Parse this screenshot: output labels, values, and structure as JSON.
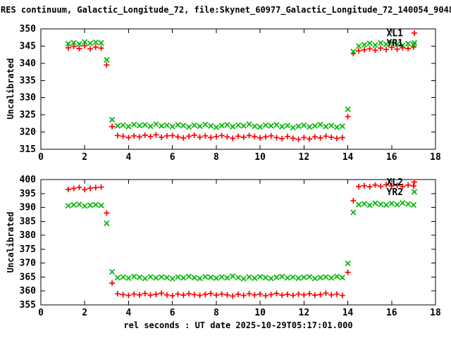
{
  "title": "RES continuum, Galactic_Longitude_72, file:Skynet_60977_Galactic_Longitude_72_140054_90483.f",
  "xlabel": "rel seconds : UT date 2025-10-29T05:17:01.000",
  "colors": {
    "red": "#ff0000",
    "green": "#00b400",
    "axis": "#000000",
    "background": "#ffffff"
  },
  "chart_data": {
    "type": "scatter",
    "x_start": 1.25,
    "x_step": 0.25,
    "xlim": [
      0,
      18
    ],
    "x_ticks": [
      0,
      2,
      4,
      6,
      8,
      10,
      12,
      14,
      16,
      18
    ],
    "grid": false,
    "legend_position": "top-right-inside",
    "panels": [
      {
        "name": "panel-1",
        "ylabel": "Uncalibrated",
        "ylim": [
          315,
          350
        ],
        "y_ticks": [
          315,
          320,
          325,
          330,
          335,
          340,
          345,
          350
        ],
        "legend": [
          {
            "label": "XL1",
            "marker": "plus",
            "color": "#ff0000"
          },
          {
            "label": "YR1",
            "marker": "cross",
            "color": "#00b400"
          }
        ],
        "series": [
          {
            "name": "XL1",
            "marker": "plus",
            "color": "#ff0000",
            "values": [
              344.5,
              344.9,
              344.3,
              345.1,
              344.2,
              344.7,
              344.4,
              339.5,
              321.6,
              319.0,
              318.8,
              318.4,
              318.9,
              318.6,
              319.1,
              318.7,
              319.2,
              318.5,
              318.9,
              319.0,
              318.6,
              318.3,
              318.8,
              319.1,
              318.5,
              318.9,
              318.4,
              318.7,
              319.0,
              318.6,
              318.2,
              318.8,
              318.5,
              319.0,
              318.7,
              318.3,
              318.6,
              318.9,
              318.4,
              318.1,
              318.7,
              318.2,
              317.9,
              318.4,
              318.0,
              318.6,
              318.3,
              318.8,
              318.5,
              318.2,
              318.4,
              324.5,
              342.8,
              343.6,
              343.9,
              344.2,
              343.8,
              344.4,
              344.0,
              344.6,
              344.1,
              344.5,
              344.3,
              344.7
            ]
          },
          {
            "name": "YR1",
            "marker": "cross",
            "color": "#00b400",
            "values": [
              345.7,
              346.0,
              345.6,
              346.2,
              345.8,
              346.1,
              345.9,
              341.0,
              323.6,
              321.8,
              322.0,
              321.6,
              322.2,
              321.9,
              322.1,
              321.7,
              322.3,
              321.8,
              322.0,
              321.6,
              322.1,
              321.9,
              321.5,
              322.0,
              321.7,
              322.2,
              321.8,
              321.4,
              321.9,
              322.1,
              321.6,
              322.0,
              321.8,
              322.3,
              321.7,
              321.5,
              322.0,
              321.8,
              322.1,
              321.6,
              321.9,
              321.3,
              321.7,
              322.0,
              321.5,
              321.8,
              322.2,
              321.6,
              321.9,
              321.4,
              321.7,
              326.6,
              343.4,
              345.0,
              345.4,
              345.8,
              345.3,
              345.9,
              345.5,
              346.0,
              345.6,
              345.2,
              345.7,
              345.4
            ]
          }
        ]
      },
      {
        "name": "panel-2",
        "ylabel": "Uncalibrated",
        "ylim": [
          355,
          400
        ],
        "y_ticks": [
          355,
          360,
          365,
          370,
          375,
          380,
          385,
          390,
          395,
          400
        ],
        "legend": [
          {
            "label": "XL2",
            "marker": "plus",
            "color": "#ff0000"
          },
          {
            "label": "YR2",
            "marker": "cross",
            "color": "#00b400"
          }
        ],
        "series": [
          {
            "name": "XL2",
            "marker": "plus",
            "color": "#ff0000",
            "values": [
              396.5,
              396.8,
              397.2,
              396.4,
              396.9,
              397.1,
              397.3,
              388.0,
              362.8,
              359.0,
              358.7,
              358.4,
              358.9,
              358.6,
              359.1,
              358.5,
              358.8,
              359.2,
              358.6,
              358.3,
              358.9,
              358.5,
              359.0,
              358.7,
              358.4,
              358.8,
              359.1,
              358.5,
              358.9,
              358.6,
              358.2,
              358.8,
              358.4,
              359.0,
              358.6,
              358.9,
              358.3,
              358.7,
              359.1,
              358.5,
              358.8,
              358.4,
              358.9,
              358.6,
              359.0,
              358.5,
              358.7,
              359.2,
              358.6,
              358.9,
              358.4,
              366.7,
              392.4,
              397.5,
              397.8,
              397.4,
              398.0,
              397.6,
              398.1,
              397.7,
              397.9,
              397.5,
              398.0,
              397.7
            ]
          },
          {
            "name": "YR2",
            "marker": "cross",
            "color": "#00b400",
            "values": [
              390.6,
              390.9,
              391.1,
              390.5,
              390.8,
              391.0,
              390.7,
              384.3,
              366.9,
              364.8,
              365.0,
              364.6,
              365.2,
              364.9,
              364.5,
              365.1,
              364.7,
              365.0,
              364.8,
              364.4,
              365.0,
              364.7,
              365.2,
              364.8,
              364.5,
              365.1,
              364.9,
              364.6,
              365.0,
              364.7,
              365.3,
              364.8,
              364.4,
              365.0,
              364.6,
              365.1,
              364.8,
              364.5,
              364.9,
              365.2,
              364.7,
              365.0,
              364.6,
              364.9,
              365.1,
              364.5,
              364.8,
              365.0,
              364.7,
              365.2,
              364.8,
              369.9,
              388.2,
              391.0,
              391.3,
              390.8,
              391.5,
              391.1,
              390.9,
              391.4,
              391.0,
              391.6,
              391.2,
              390.9
            ]
          }
        ]
      }
    ]
  }
}
